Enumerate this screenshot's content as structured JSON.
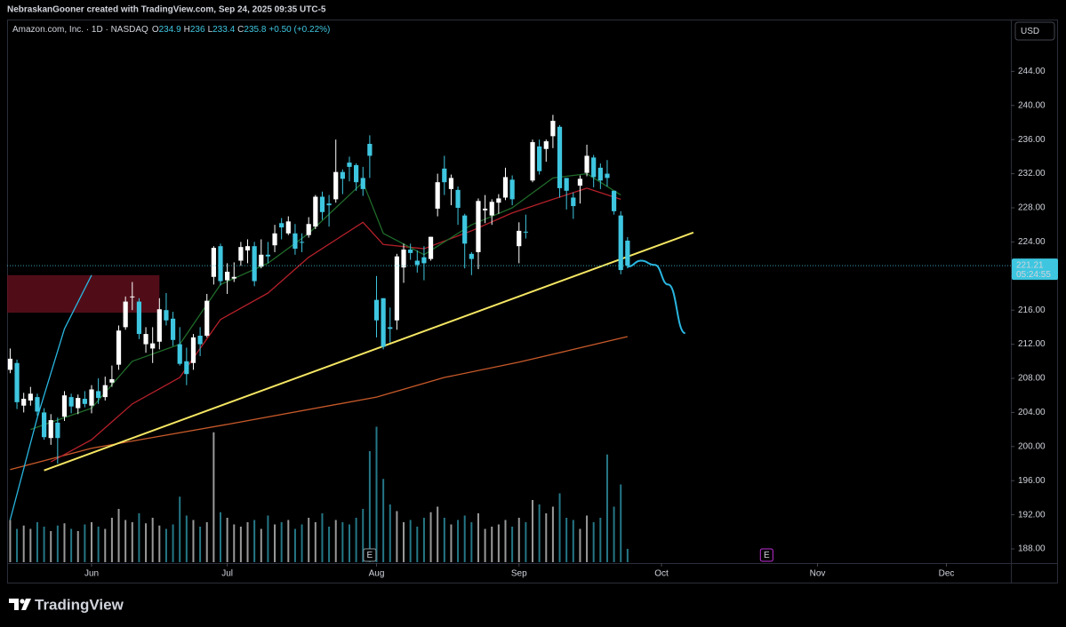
{
  "watermark": "NebraskanGooner created with TradingView.com, Sep 24, 2025 09:35 UTC-5",
  "brand": "TradingView",
  "chart_data": {
    "type": "candlestick",
    "header": {
      "symbol": "Amazon.com, Inc. · 1D · NASDAQ",
      "ohlc_labels": [
        "O",
        "H",
        "L",
        "C"
      ],
      "change": "+0.50 (+0.22%)"
    },
    "currency": "USD",
    "countdown": "05:24:55",
    "up_color": "#ffffff",
    "down_color": "#3ec6e0",
    "xlim": [
      -0.45,
      147.5
    ],
    "xticks": [
      {
        "value": 12,
        "label": "Jun"
      },
      {
        "value": 32,
        "label": "Jul"
      },
      {
        "value": 54,
        "label": "Aug"
      },
      {
        "value": 75,
        "label": "Sep"
      },
      {
        "value": 96,
        "label": "Oct"
      },
      {
        "value": 119,
        "label": "Nov"
      },
      {
        "value": 138,
        "label": "Dec"
      }
    ],
    "ylim": [
      183.94,
      250.08
    ],
    "yticks": [
      {
        "value": 188,
        "label": "188.00"
      },
      {
        "value": 192,
        "label": "192.00"
      },
      {
        "value": 196,
        "label": "196.00"
      },
      {
        "value": 200,
        "label": "200.00"
      },
      {
        "value": 204,
        "label": "204.00"
      },
      {
        "value": 208,
        "label": "208.00"
      },
      {
        "value": 212,
        "label": "212.00"
      },
      {
        "value": 216,
        "label": "216.00"
      },
      {
        "value": 220,
        "label": "220.00"
      },
      {
        "value": 224,
        "label": "224.00"
      },
      {
        "value": 228,
        "label": "228.00"
      },
      {
        "value": 232,
        "label": "232.00"
      },
      {
        "value": 236,
        "label": "236.00"
      },
      {
        "value": 240,
        "label": "240.00"
      },
      {
        "value": 244,
        "label": "244.00"
      }
    ],
    "candles": [
      [
        209.0,
        211.5,
        208.6,
        210.3
      ],
      [
        209.8,
        210.2,
        204.4,
        205.2
      ],
      [
        204.8,
        206.3,
        204.0,
        205.6
      ],
      [
        205.4,
        207.0,
        204.8,
        206.2
      ],
      [
        205.8,
        206.2,
        203.6,
        204.1
      ],
      [
        204.0,
        204.5,
        200.8,
        201.1
      ],
      [
        201.0,
        203.8,
        200.2,
        203.1
      ],
      [
        202.8,
        203.4,
        198.0,
        201.0
      ],
      [
        203.5,
        206.5,
        203.0,
        206.0
      ],
      [
        205.8,
        206.2,
        203.9,
        204.7
      ],
      [
        204.5,
        206.1,
        203.8,
        205.7
      ],
      [
        205.6,
        206.5,
        204.6,
        205.0
      ],
      [
        204.8,
        207.2,
        203.9,
        206.7
      ],
      [
        206.5,
        208.0,
        205.0,
        205.7
      ],
      [
        205.8,
        208.2,
        205.4,
        207.2
      ],
      [
        207.5,
        209.5,
        207.0,
        207.9
      ],
      [
        209.6,
        214.2,
        209.0,
        213.6
      ],
      [
        214.0,
        217.6,
        213.7,
        217.0
      ],
      [
        217.5,
        219.3,
        216.0,
        217.6
      ],
      [
        217.0,
        217.4,
        212.6,
        213.2
      ],
      [
        212.0,
        214.0,
        211.0,
        213.2
      ],
      [
        211.5,
        214.0,
        209.8,
        212.1
      ],
      [
        212.3,
        217.4,
        211.4,
        216.1
      ],
      [
        216.0,
        218.0,
        214.2,
        214.8
      ],
      [
        215.0,
        215.8,
        211.8,
        212.5
      ],
      [
        212.0,
        214.0,
        209.5,
        209.7
      ],
      [
        210.0,
        211.6,
        207.2,
        208.5
      ],
      [
        209.8,
        213.2,
        209.0,
        212.8
      ],
      [
        213.0,
        214.0,
        210.6,
        212.0
      ],
      [
        213.0,
        217.9,
        212.8,
        217.1
      ],
      [
        219.9,
        223.5,
        219.0,
        223.3
      ],
      [
        223.5,
        223.8,
        218.9,
        219.4
      ],
      [
        219.5,
        221.5,
        217.9,
        220.5
      ],
      [
        219.7,
        221.6,
        219.3,
        219.9
      ],
      [
        221.8,
        224.0,
        221.2,
        223.4
      ],
      [
        223.0,
        224.3,
        221.5,
        223.5
      ],
      [
        223.5,
        224.0,
        218.8,
        219.4
      ],
      [
        221.1,
        224.3,
        220.9,
        222.5
      ],
      [
        222.5,
        224.0,
        221.5,
        222.3
      ],
      [
        223.6,
        226.0,
        222.8,
        225.0
      ],
      [
        226.2,
        226.8,
        224.3,
        225.7
      ],
      [
        225.0,
        227.0,
        224.8,
        226.4
      ],
      [
        225.0,
        226.1,
        222.5,
        223.2
      ],
      [
        224.0,
        225.0,
        222.8,
        223.9
      ],
      [
        224.8,
        226.9,
        224.5,
        226.1
      ],
      [
        225.8,
        229.5,
        225.5,
        229.3
      ],
      [
        229.3,
        229.9,
        226.6,
        227.5
      ],
      [
        228.5,
        229.5,
        225.8,
        228.3
      ],
      [
        229.0,
        236.0,
        228.6,
        232.2
      ],
      [
        232.2,
        232.5,
        229.6,
        231.4
      ],
      [
        233.3,
        234.0,
        231.1,
        232.8
      ],
      [
        233.0,
        233.2,
        230.0,
        231.0
      ],
      [
        231.5,
        232.8,
        229.4,
        230.2
      ],
      [
        235.5,
        236.5,
        231.5,
        234.1
      ],
      [
        217.2,
        220.0,
        212.8,
        214.8
      ],
      [
        217.4,
        217.4,
        211.4,
        211.7
      ],
      [
        214.0,
        216.3,
        212.2,
        213.8
      ],
      [
        214.8,
        222.6,
        213.7,
        222.3
      ],
      [
        221.0,
        223.8,
        219.2,
        223.1
      ],
      [
        223.1,
        223.8,
        221.9,
        222.7
      ],
      [
        221.8,
        223.0,
        220.4,
        221.3
      ],
      [
        222.2,
        223.5,
        219.5,
        221.5
      ],
      [
        222.0,
        224.6,
        221.8,
        224.6
      ],
      [
        227.9,
        232.0,
        227.0,
        231.0
      ],
      [
        232.6,
        234.1,
        229.5,
        231.0
      ],
      [
        230.2,
        231.9,
        228.3,
        231.5
      ],
      [
        230.1,
        230.5,
        226.0,
        228.0
      ],
      [
        227.1,
        227.3,
        220.9,
        223.8
      ],
      [
        222.6,
        222.8,
        220.1,
        222.0
      ],
      [
        222.8,
        229.1,
        220.8,
        228.8
      ],
      [
        227.7,
        229.5,
        226.2,
        227.9
      ],
      [
        227.1,
        229.0,
        226.0,
        228.7
      ],
      [
        228.6,
        229.6,
        227.3,
        229.1
      ],
      [
        229.2,
        232.7,
        228.9,
        231.6
      ],
      [
        231.3,
        231.8,
        228.3,
        229.0
      ],
      [
        223.5,
        226.3,
        221.5,
        225.3
      ],
      [
        225.2,
        227.2,
        224.4,
        225.1
      ],
      [
        231.2,
        236.0,
        231.0,
        235.7
      ],
      [
        235.2,
        236.0,
        231.9,
        232.3
      ],
      [
        234.9,
        236.0,
        233.4,
        235.8
      ],
      [
        236.4,
        238.9,
        235.0,
        238.2
      ],
      [
        237.5,
        237.7,
        229.2,
        230.3
      ],
      [
        231.5,
        231.5,
        227.8,
        230.0
      ],
      [
        229.2,
        229.8,
        226.7,
        228.2
      ],
      [
        230.6,
        231.8,
        228.5,
        231.4
      ],
      [
        232.1,
        235.4,
        231.7,
        234.1
      ],
      [
        233.9,
        234.2,
        230.4,
        231.6
      ],
      [
        232.7,
        233.2,
        230.2,
        231.2
      ],
      [
        232.0,
        233.6,
        230.5,
        231.5
      ],
      [
        230.0,
        230.0,
        227.2,
        227.6
      ],
      [
        227.1,
        227.6,
        220.2,
        220.7
      ],
      [
        224.15,
        224.56,
        220.9,
        221.21
      ]
    ],
    "volume_lim": [
      0,
      160
    ],
    "volumes": [
      38,
      30,
      33,
      30,
      36,
      32,
      28,
      33,
      35,
      30,
      28,
      34,
      36,
      32,
      30,
      40,
      48,
      38,
      36,
      44,
      35,
      40,
      33,
      30,
      34,
      59,
      42,
      38,
      32,
      36,
      117,
      45,
      40,
      34,
      32,
      36,
      38,
      30,
      42,
      34,
      36,
      38,
      30,
      34,
      40,
      36,
      44,
      32,
      38,
      36,
      34,
      40,
      48,
      100,
      122,
      75,
      52,
      46,
      36,
      38,
      32,
      40,
      45,
      50,
      40,
      34,
      38,
      42,
      36,
      44,
      30,
      32,
      34,
      38,
      32,
      40,
      36,
      56,
      52,
      44,
      50,
      62,
      40,
      38,
      30,
      42,
      36,
      40,
      97,
      50,
      70,
      12
    ],
    "series": [
      {
        "color": "#c85a2a",
        "x": [
          0,
          12,
          32,
          54,
          64,
          75,
          82,
          91
        ],
        "values": [
          197.3,
          199.8,
          202.6,
          205.8,
          208.1,
          209.9,
          211.2,
          212.9
        ]
      },
      {
        "color": "#b3202a",
        "x": [
          6,
          12,
          18,
          25,
          31,
          38,
          44,
          52,
          55,
          61,
          68,
          74,
          80,
          85,
          90
        ],
        "values": [
          198.2,
          200.8,
          205.0,
          208.1,
          214.9,
          218.0,
          222.2,
          226.3,
          223.7,
          223.2,
          225.3,
          227.4,
          229.0,
          230.3,
          229.0
        ]
      },
      {
        "color": "#1f6b2a",
        "x": [
          3,
          12,
          18,
          25,
          31,
          38,
          44,
          52,
          55,
          61,
          68,
          74,
          80,
          85,
          90
        ],
        "values": [
          202.0,
          204.5,
          210.0,
          212.0,
          219.0,
          221.5,
          225.0,
          231.0,
          225.0,
          222.5,
          226.0,
          228.0,
          231.5,
          232.0,
          229.5
        ]
      },
      {
        "color": "#29b6e0",
        "x": [
          0,
          4,
          8,
          12
        ],
        "values": [
          191.4,
          203.4,
          213.8,
          220.1
        ]
      }
    ],
    "trendline": {
      "color": "#f5e663",
      "x": [
        5,
        100.7
      ],
      "values": [
        197.2,
        225.1
      ]
    },
    "projection": {
      "color": "#29b6e0",
      "x": [
        91,
        93,
        95,
        97,
        99.5
      ],
      "values": [
        221.1,
        221.8,
        221.3,
        219.0,
        213.3
      ]
    },
    "zone": {
      "color": "#6b1220",
      "x": [
        -0.45,
        22
      ],
      "values": [
        215.7,
        220.1
      ]
    },
    "events": [
      {
        "x": 53,
        "label": "E",
        "color": "#8a9aa0"
      },
      {
        "x": 111.5,
        "label": "E",
        "color": "#c030d8"
      }
    ]
  }
}
